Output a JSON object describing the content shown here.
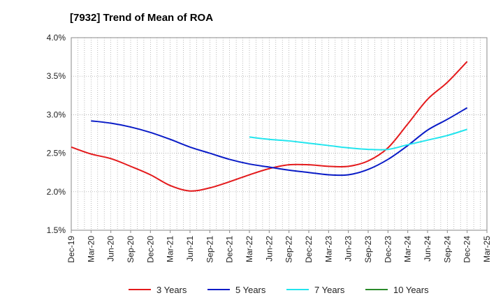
{
  "chart_data": {
    "type": "line",
    "title": "[7932]  Trend of Mean of ROA",
    "xlabel": "",
    "ylabel": "",
    "ylim": [
      1.5,
      4.0
    ],
    "y_ticks": [
      "1.5%",
      "2.0%",
      "2.5%",
      "3.0%",
      "3.5%",
      "4.0%"
    ],
    "y_tick_values": [
      1.5,
      2.0,
      2.5,
      3.0,
      3.5,
      4.0
    ],
    "x_ticks": [
      "Dec-19",
      "Mar-20",
      "Jun-20",
      "Sep-20",
      "Dec-20",
      "Mar-21",
      "Jun-21",
      "Sep-21",
      "Dec-21",
      "Mar-22",
      "Jun-22",
      "Sep-22",
      "Dec-22",
      "Mar-23",
      "Jun-23",
      "Sep-23",
      "Dec-23",
      "Mar-24",
      "Jun-24",
      "Sep-24",
      "Dec-24",
      "Mar-25"
    ],
    "grid": true,
    "legend_position": "bottom",
    "series": [
      {
        "name": "3 Years",
        "color": "#e41a1c",
        "x": [
          "Dec-19",
          "Mar-20",
          "Jun-20",
          "Sep-20",
          "Dec-20",
          "Mar-21",
          "Jun-21",
          "Sep-21",
          "Dec-21",
          "Mar-22",
          "Jun-22",
          "Sep-22",
          "Dec-22",
          "Mar-23",
          "Jun-23",
          "Sep-23",
          "Dec-23",
          "Mar-24",
          "Jun-24",
          "Sep-24",
          "Dec-24"
        ],
        "values": [
          2.58,
          2.49,
          2.43,
          2.33,
          2.22,
          2.08,
          2.01,
          2.05,
          2.13,
          2.22,
          2.3,
          2.35,
          2.35,
          2.33,
          2.33,
          2.4,
          2.57,
          2.88,
          3.2,
          3.42,
          3.69
        ]
      },
      {
        "name": "5 Years",
        "color": "#0a1cc7",
        "x": [
          "Mar-20",
          "Jun-20",
          "Sep-20",
          "Dec-20",
          "Mar-21",
          "Jun-21",
          "Sep-21",
          "Dec-21",
          "Mar-22",
          "Jun-22",
          "Sep-22",
          "Dec-22",
          "Mar-23",
          "Jun-23",
          "Sep-23",
          "Dec-23",
          "Mar-24",
          "Jun-24",
          "Sep-24",
          "Dec-24"
        ],
        "values": [
          2.92,
          2.89,
          2.84,
          2.77,
          2.68,
          2.58,
          2.5,
          2.42,
          2.36,
          2.32,
          2.28,
          2.25,
          2.22,
          2.22,
          2.29,
          2.42,
          2.6,
          2.8,
          2.94,
          3.09
        ]
      },
      {
        "name": "7 Years",
        "color": "#22e5ee",
        "x": [
          "Mar-22",
          "Jun-22",
          "Sep-22",
          "Dec-22",
          "Mar-23",
          "Jun-23",
          "Sep-23",
          "Dec-23",
          "Mar-24",
          "Jun-24",
          "Sep-24",
          "Dec-24"
        ],
        "values": [
          2.71,
          2.68,
          2.66,
          2.63,
          2.6,
          2.57,
          2.55,
          2.55,
          2.61,
          2.67,
          2.73,
          2.81
        ]
      },
      {
        "name": "10 Years",
        "color": "#2a8a2a",
        "x": [],
        "values": []
      }
    ]
  }
}
